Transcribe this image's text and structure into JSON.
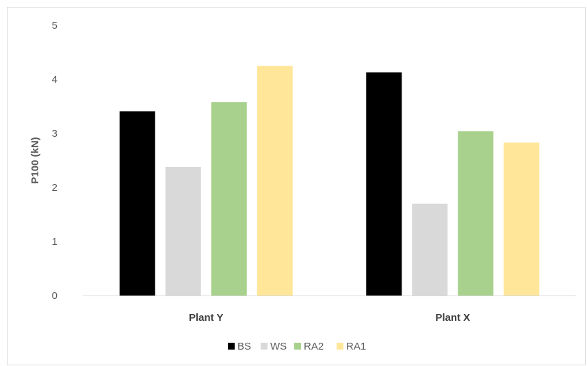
{
  "chart_data": {
    "type": "bar",
    "categories": [
      "Plant Y",
      "Plant X"
    ],
    "series": [
      {
        "name": "BS",
        "color": "#000000",
        "values": [
          3.41,
          4.13
        ]
      },
      {
        "name": "WS",
        "color": "#d9d9d9",
        "values": [
          2.38,
          1.7
        ]
      },
      {
        "name": "RA2",
        "color": "#a9d18e",
        "values": [
          3.58,
          3.04
        ]
      },
      {
        "name": "RA1",
        "color": "#ffe699",
        "values": [
          4.25,
          2.83
        ]
      }
    ],
    "ylabel": "P100 (kN)",
    "ylim": [
      0,
      5
    ],
    "yticks": [
      0,
      1,
      2,
      3,
      4,
      5
    ],
    "grid": false,
    "legend_position": "bottom"
  }
}
